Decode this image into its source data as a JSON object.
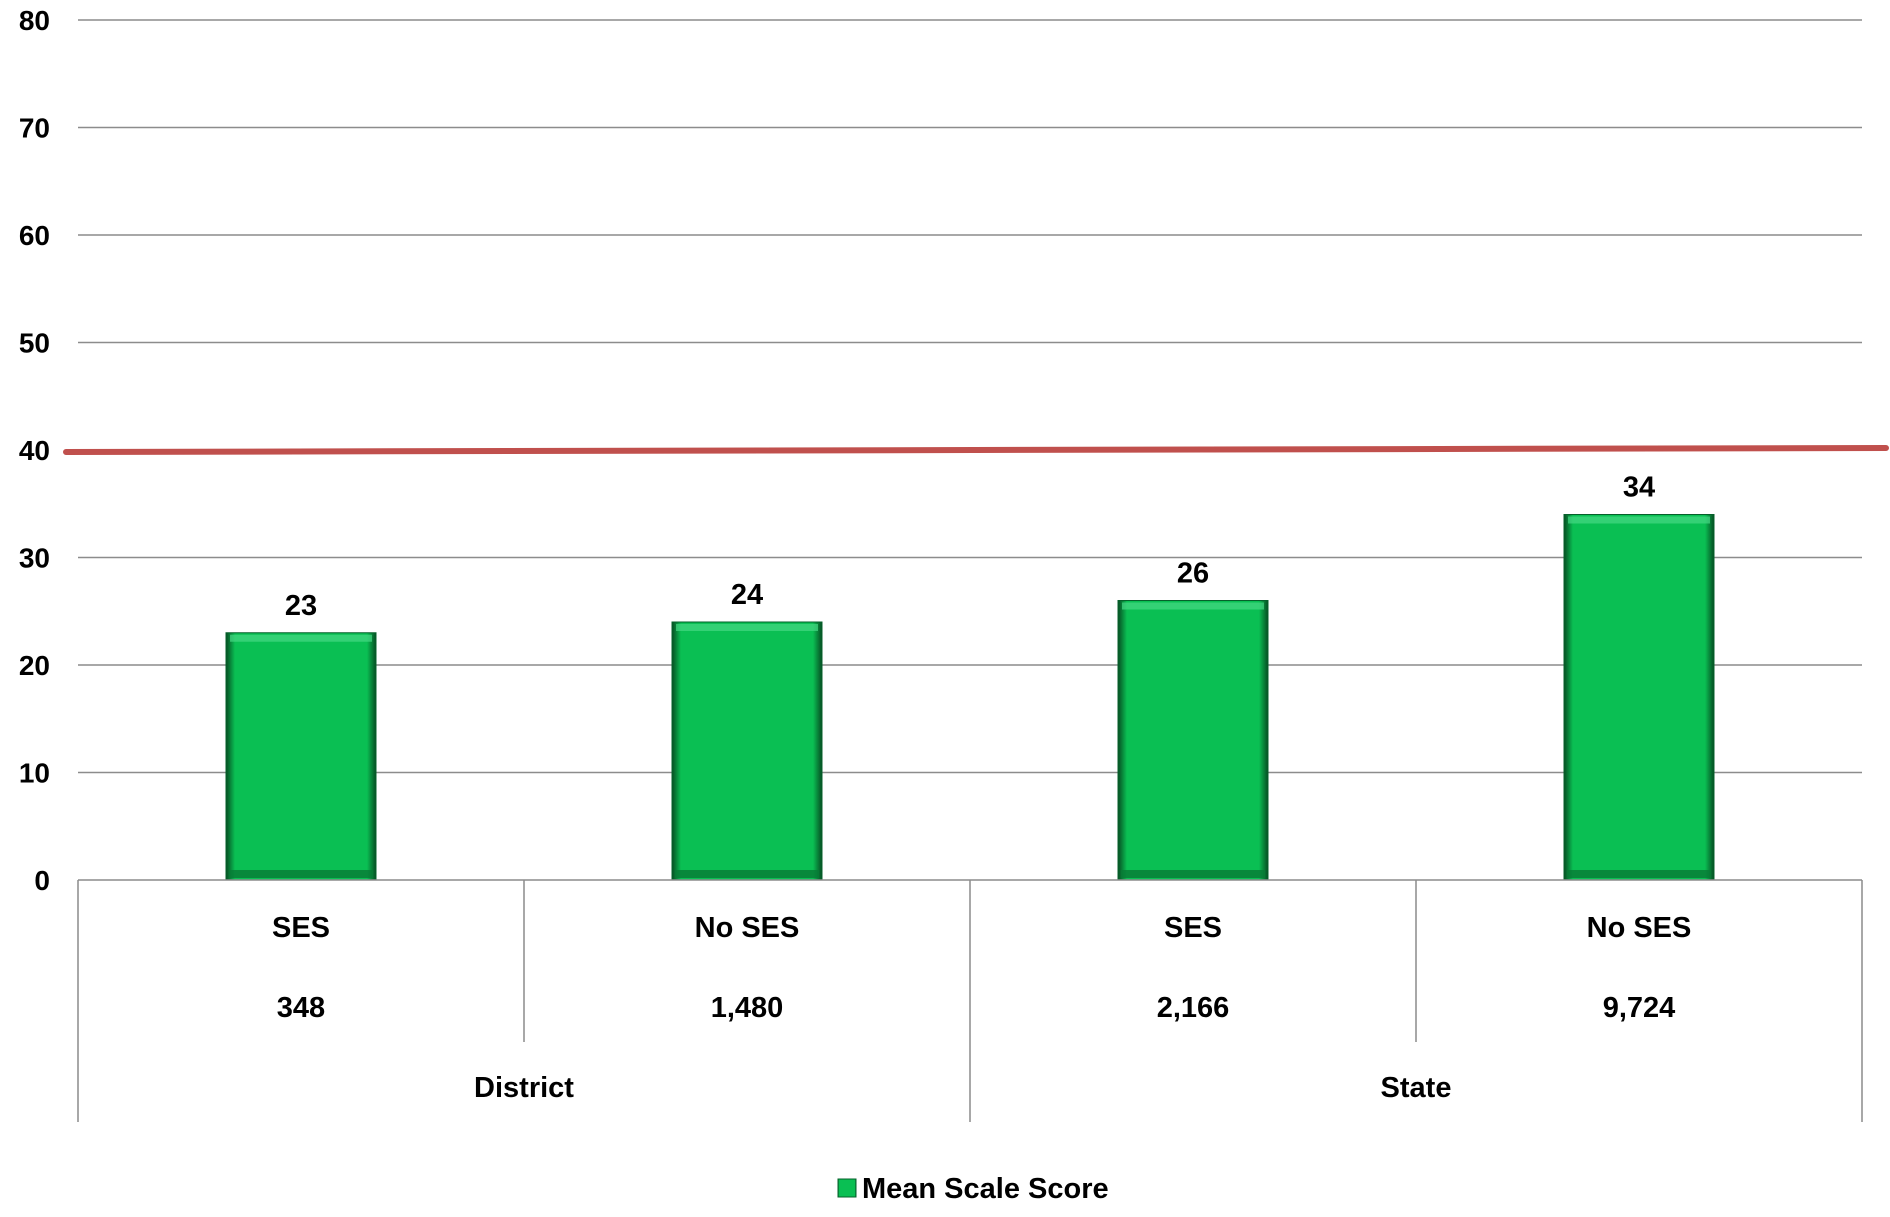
{
  "chart_data": {
    "type": "bar",
    "title": "",
    "xlabel": "",
    "ylabel": "",
    "ylim": [
      0,
      80
    ],
    "yticks": [
      0,
      10,
      20,
      30,
      40,
      50,
      60,
      70,
      80
    ],
    "grid": true,
    "categories": [
      {
        "label": "SES",
        "count": "348",
        "group": "District"
      },
      {
        "label": "No SES",
        "count": "1,480",
        "group": "District"
      },
      {
        "label": "SES",
        "count": "2,166",
        "group": "State"
      },
      {
        "label": "No SES",
        "count": "9,724",
        "group": "State"
      }
    ],
    "groups": [
      "District",
      "State"
    ],
    "series": [
      {
        "name": "Mean Scale Score",
        "values": [
          23,
          24,
          26,
          34
        ],
        "color": "#0abf53"
      }
    ],
    "reference_line": {
      "value": 40,
      "color": "#c0504d"
    },
    "legend_position": "bottom"
  }
}
